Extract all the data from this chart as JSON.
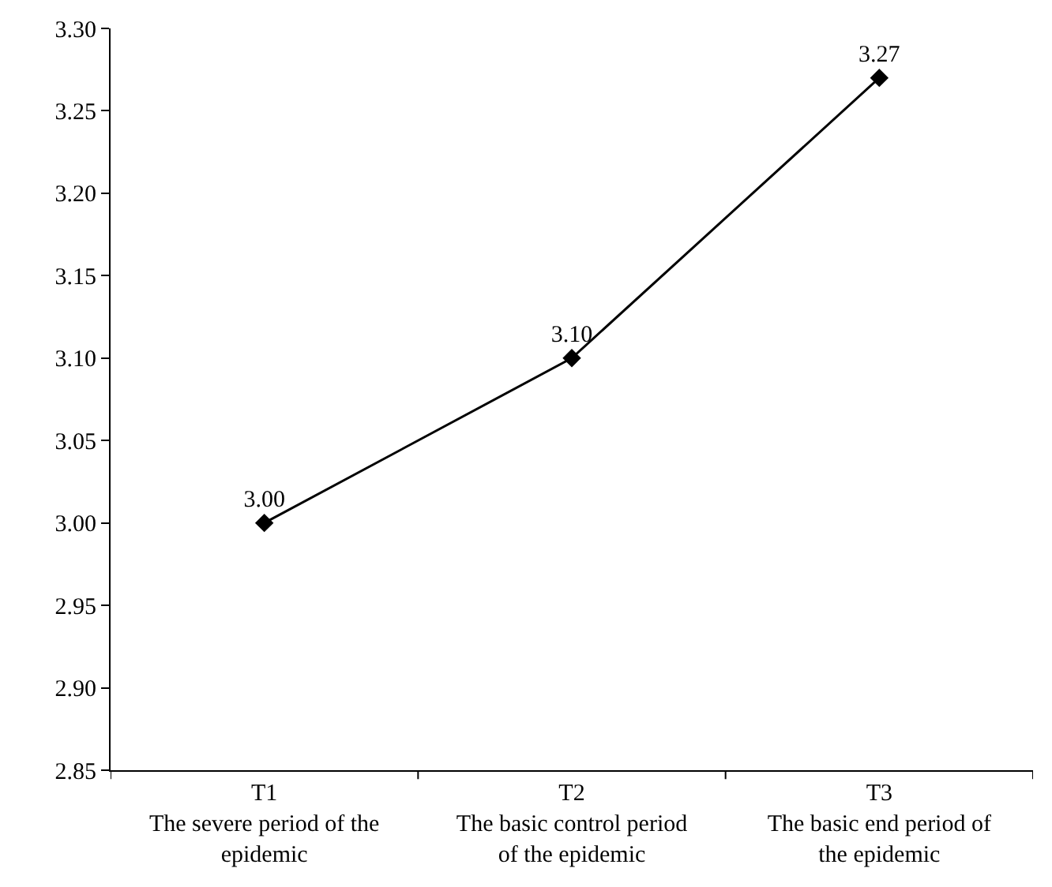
{
  "chart_data": {
    "type": "line",
    "categories": [
      "T1\nThe severe period of the\nepidemic",
      "T2\nThe basic control period\nof the epidemic",
      "T3\nThe basic end period of\nthe epidemic"
    ],
    "series": [
      {
        "color": "#000000",
        "values": [
          3.0,
          3.1,
          3.27
        ],
        "value_labels": [
          "3.00",
          "3.10",
          "3.27"
        ]
      }
    ],
    "ylim": [
      2.85,
      3.3
    ],
    "yticks": [
      {
        "value": 2.85,
        "label": "2.85"
      },
      {
        "value": 2.9,
        "label": "2.90"
      },
      {
        "value": 2.95,
        "label": "2.95"
      },
      {
        "value": 3.0,
        "label": "3.00"
      },
      {
        "value": 3.05,
        "label": "3.05"
      },
      {
        "value": 3.1,
        "label": "3.10"
      },
      {
        "value": 3.15,
        "label": "3.15"
      },
      {
        "value": 3.2,
        "label": "3.20"
      },
      {
        "value": 3.25,
        "label": "3.25"
      },
      {
        "value": 3.3,
        "label": "3.30"
      }
    ],
    "grid": false,
    "marker": "diamond",
    "line_style": "solid"
  }
}
